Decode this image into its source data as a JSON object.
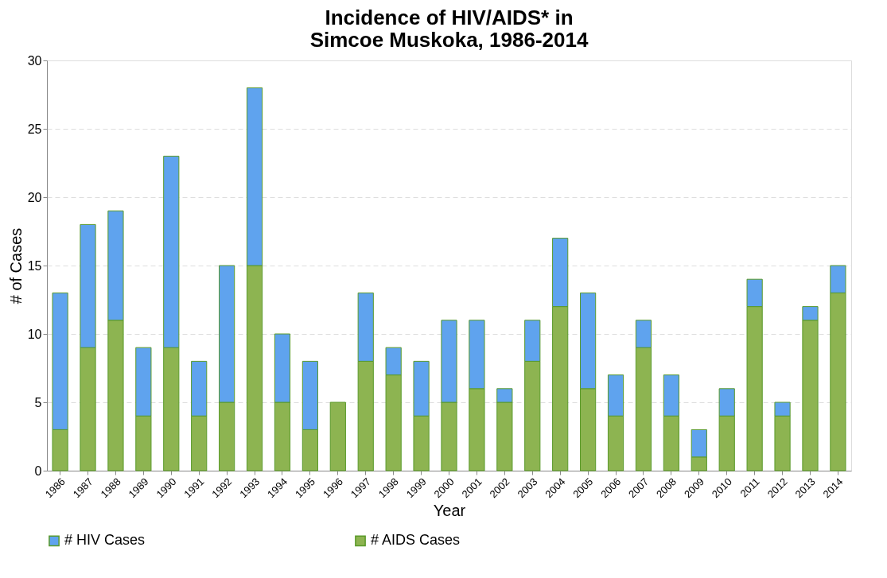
{
  "chart_data": {
    "type": "bar",
    "title": "Incidence of HIV/AIDS* in\nSimcoe Muskoka, 1986-2014",
    "xlabel": "Year",
    "ylabel": "# of Cases",
    "categories": [
      "1986",
      "1987",
      "1988",
      "1989",
      "1990",
      "1991",
      "1992",
      "1993",
      "1994",
      "1995",
      "1996",
      "1997",
      "1998",
      "1999",
      "2000",
      "2001",
      "2002",
      "2003",
      "2004",
      "2005",
      "2006",
      "2007",
      "2008",
      "2009",
      "2010",
      "2011",
      "2012",
      "2013",
      "2014"
    ],
    "stacked": true,
    "series": [
      {
        "name": "# AIDS Cases",
        "color": "#8db451",
        "values": [
          3,
          9,
          11,
          4,
          9,
          4,
          5,
          15,
          5,
          3,
          5,
          8,
          7,
          4,
          5,
          6,
          5,
          8,
          12,
          6,
          4,
          9,
          4,
          1,
          4,
          12,
          4,
          11,
          13
        ]
      },
      {
        "name": "# HIV Cases",
        "color": "#5fa3ee",
        "values": [
          10,
          9,
          8,
          5,
          14,
          4,
          10,
          13,
          5,
          5,
          null,
          5,
          2,
          4,
          6,
          5,
          1,
          3,
          5,
          7,
          3,
          2,
          3,
          2,
          2,
          2,
          1,
          1,
          2
        ]
      }
    ],
    "ylim": [
      0,
      30
    ],
    "yticks": [
      0,
      5,
      10,
      15,
      20,
      25,
      30
    ],
    "grid": "y",
    "legend": "bottom"
  }
}
